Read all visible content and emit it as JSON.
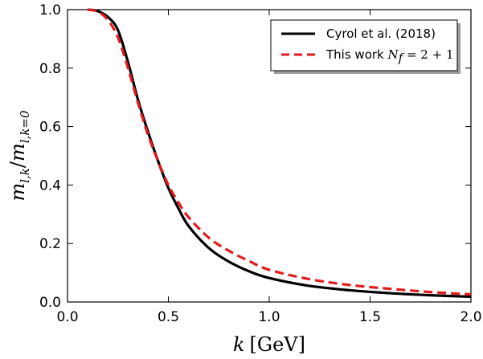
{
  "chart_data": {
    "type": "line",
    "title": "",
    "xlabel": "k [GeV]",
    "ylabel": "m_{l,k}/m_{l,k=0}",
    "xlim": [
      0.0,
      2.0
    ],
    "ylim": [
      0.0,
      1.0
    ],
    "xticks": [
      "0.0",
      "0.5",
      "1.0",
      "1.5",
      "2.0"
    ],
    "yticks": [
      "0.0",
      "0.2",
      "0.4",
      "0.6",
      "0.8",
      "1.0"
    ],
    "grid": false,
    "legend_position": "top-right",
    "series": [
      {
        "name": "Cyrol et al. (2018)",
        "color": "#000000",
        "style": "solid",
        "x": [
          0.1,
          0.15,
          0.2,
          0.25,
          0.3,
          0.35,
          0.4,
          0.45,
          0.5,
          0.55,
          0.6,
          0.7,
          0.8,
          0.9,
          1.0,
          1.2,
          1.4,
          1.6,
          1.8,
          2.0
        ],
        "y": [
          1.0,
          0.995,
          0.975,
          0.93,
          0.82,
          0.69,
          0.58,
          0.48,
          0.39,
          0.32,
          0.26,
          0.185,
          0.138,
          0.105,
          0.082,
          0.055,
          0.04,
          0.03,
          0.023,
          0.018
        ]
      },
      {
        "name": "This work N_f = 2+1",
        "color": "#e31a1c",
        "style": "dashed",
        "x": [
          0.1,
          0.15,
          0.2,
          0.25,
          0.3,
          0.35,
          0.4,
          0.45,
          0.5,
          0.55,
          0.6,
          0.7,
          0.8,
          0.9,
          1.0,
          1.2,
          1.4,
          1.6,
          1.8,
          2.0
        ],
        "y": [
          1.0,
          0.993,
          0.965,
          0.905,
          0.8,
          0.68,
          0.57,
          0.48,
          0.4,
          0.34,
          0.29,
          0.22,
          0.175,
          0.14,
          0.11,
          0.078,
          0.058,
          0.045,
          0.034,
          0.026
        ]
      }
    ]
  }
}
